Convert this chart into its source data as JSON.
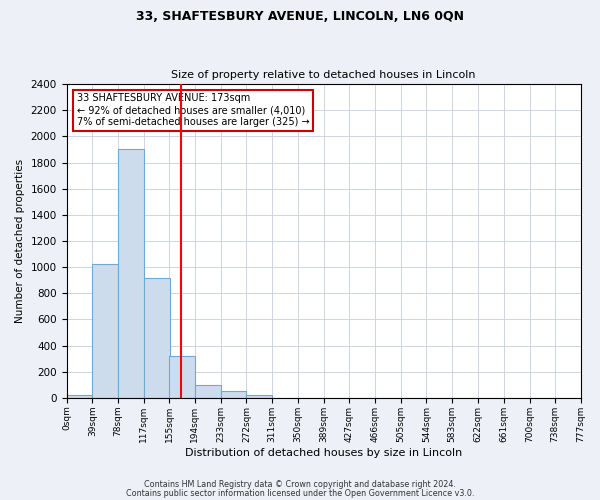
{
  "title": "33, SHAFTESBURY AVENUE, LINCOLN, LN6 0QN",
  "subtitle": "Size of property relative to detached houses in Lincoln",
  "xlabel": "Distribution of detached houses by size in Lincoln",
  "ylabel": "Number of detached properties",
  "bar_left_edges": [
    0,
    39,
    78,
    117,
    155,
    194,
    233,
    272,
    311,
    350,
    389,
    427,
    466,
    505,
    544,
    583,
    622,
    661,
    700,
    738
  ],
  "bar_heights": [
    20,
    1025,
    1900,
    920,
    320,
    100,
    50,
    20,
    0,
    0,
    0,
    0,
    0,
    0,
    0,
    0,
    0,
    0,
    0,
    0
  ],
  "bin_width": 39,
  "tick_labels": [
    "0sqm",
    "39sqm",
    "78sqm",
    "117sqm",
    "155sqm",
    "194sqm",
    "233sqm",
    "272sqm",
    "311sqm",
    "350sqm",
    "389sqm",
    "427sqm",
    "466sqm",
    "505sqm",
    "544sqm",
    "583sqm",
    "622sqm",
    "661sqm",
    "700sqm",
    "738sqm",
    "777sqm"
  ],
  "ylim": [
    0,
    2400
  ],
  "yticks": [
    0,
    200,
    400,
    600,
    800,
    1000,
    1200,
    1400,
    1600,
    1800,
    2000,
    2200,
    2400
  ],
  "bar_color": "#cddcec",
  "bar_edge_color": "#6aaad4",
  "red_line_x": 173,
  "annotation_line1": "33 SHAFTESBURY AVENUE: 173sqm",
  "annotation_line2": "← 92% of detached houses are smaller (4,010)",
  "annotation_line3": "7% of semi-detached houses are larger (325) →",
  "footer_line1": "Contains HM Land Registry data © Crown copyright and database right 2024.",
  "footer_line2": "Contains public sector information licensed under the Open Government Licence v3.0.",
  "background_color": "#edf1f7",
  "plot_background_color": "#ffffff",
  "grid_color": "#c5cfe0"
}
